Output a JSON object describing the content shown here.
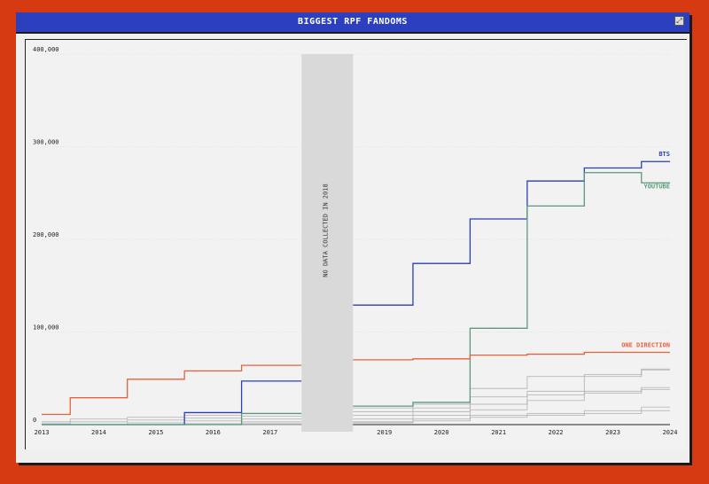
{
  "window": {
    "title": "BIGGEST RPF FANDOMS",
    "resize_icon": "resize-icon"
  },
  "colors": {
    "background": "#d63a12",
    "titlebar": "#2b3fbf",
    "bts": "#2a3fb5",
    "youtube": "#5a9a7a",
    "one_direction": "#e8603c",
    "other": "#a9a9a9",
    "no_data_band": "#d9d9d9"
  },
  "chart_data": {
    "type": "line",
    "step": true,
    "title": "BIGGEST RPF FANDOMS",
    "xlabel": "",
    "ylabel": "",
    "x_ticks": [
      "2013",
      "2014",
      "2015",
      "2016",
      "2017",
      "2019",
      "2020",
      "2021",
      "2022",
      "2023",
      "2024"
    ],
    "y_ticks": [
      "0",
      "100,000",
      "200,000",
      "300,000",
      "400,000"
    ],
    "ylim": [
      0,
      400000
    ],
    "xlim": [
      2013,
      2024
    ],
    "grid": "horizontal-dotted",
    "no_data": {
      "x_start": 2017.55,
      "x_end": 2018.45,
      "label": "NO DATA COLLECTED IN 2018"
    },
    "series": [
      {
        "name": "BTS",
        "color": "#2a3fb5",
        "labeled": true,
        "points": [
          [
            2013,
            0
          ],
          [
            2015.5,
            13000
          ],
          [
            2016.5,
            47000
          ],
          [
            2017.55,
            47000
          ],
          [
            2018.45,
            129000
          ],
          [
            2019.5,
            174000
          ],
          [
            2020.5,
            222000
          ],
          [
            2021.5,
            263000
          ],
          [
            2022.5,
            277000
          ],
          [
            2023.5,
            284000
          ],
          [
            2024,
            284000
          ]
        ]
      },
      {
        "name": "YOUTUBE",
        "color": "#5a9a7a",
        "labeled": true,
        "points": [
          [
            2013,
            0
          ],
          [
            2016.5,
            12000
          ],
          [
            2017.55,
            12000
          ],
          [
            2018.45,
            20000
          ],
          [
            2019.5,
            24000
          ],
          [
            2020.5,
            104000
          ],
          [
            2021.5,
            236000
          ],
          [
            2022.5,
            272000
          ],
          [
            2023.5,
            261000
          ],
          [
            2024,
            261000
          ]
        ]
      },
      {
        "name": "ONE DIRECTION",
        "color": "#e8603c",
        "labeled": true,
        "points": [
          [
            2013,
            11000
          ],
          [
            2013.5,
            29000
          ],
          [
            2014.5,
            49000
          ],
          [
            2015.5,
            58000
          ],
          [
            2016.5,
            64000
          ],
          [
            2017.55,
            64000
          ],
          [
            2018.45,
            70000
          ],
          [
            2019.5,
            71000
          ],
          [
            2020.5,
            75000
          ],
          [
            2021.5,
            76000
          ],
          [
            2022.5,
            78000
          ],
          [
            2024,
            78000
          ]
        ]
      },
      {
        "name": "",
        "color": "#a9a9a9",
        "labeled": false,
        "points": [
          [
            2013,
            3000
          ],
          [
            2013.5,
            6000
          ],
          [
            2014.5,
            8000
          ],
          [
            2015.5,
            10000
          ],
          [
            2016.5,
            12000
          ],
          [
            2017.55,
            12000
          ],
          [
            2018.45,
            18000
          ],
          [
            2019.5,
            22000
          ],
          [
            2020.5,
            39000
          ],
          [
            2021.5,
            52000
          ],
          [
            2022.5,
            54000
          ],
          [
            2023.5,
            59000
          ],
          [
            2024,
            59000
          ]
        ]
      },
      {
        "name": "",
        "color": "#a9a9a9",
        "labeled": false,
        "points": [
          [
            2013,
            1000
          ],
          [
            2013.5,
            3000
          ],
          [
            2014.5,
            5000
          ],
          [
            2015.5,
            7000
          ],
          [
            2016.5,
            9000
          ],
          [
            2017.55,
            9000
          ],
          [
            2018.45,
            14000
          ],
          [
            2019.5,
            18000
          ],
          [
            2020.5,
            30000
          ],
          [
            2021.5,
            36000
          ],
          [
            2022.5,
            52000
          ],
          [
            2023.5,
            60000
          ],
          [
            2024,
            60000
          ]
        ]
      },
      {
        "name": "",
        "color": "#a9a9a9",
        "labeled": false,
        "points": [
          [
            2013,
            0
          ],
          [
            2014.5,
            2000
          ],
          [
            2015.5,
            4000
          ],
          [
            2016.5,
            6000
          ],
          [
            2017.55,
            6000
          ],
          [
            2018.45,
            10000
          ],
          [
            2019.5,
            14000
          ],
          [
            2020.5,
            22000
          ],
          [
            2021.5,
            32000
          ],
          [
            2022.5,
            36000
          ],
          [
            2023.5,
            40000
          ],
          [
            2024,
            40000
          ]
        ]
      },
      {
        "name": "",
        "color": "#a9a9a9",
        "labeled": false,
        "points": [
          [
            2013,
            0
          ],
          [
            2015.5,
            1000
          ],
          [
            2016.5,
            3000
          ],
          [
            2017.55,
            3000
          ],
          [
            2018.45,
            6000
          ],
          [
            2019.5,
            10000
          ],
          [
            2020.5,
            16000
          ],
          [
            2021.5,
            26000
          ],
          [
            2022.5,
            34000
          ],
          [
            2023.5,
            38000
          ],
          [
            2024,
            38000
          ]
        ]
      },
      {
        "name": "",
        "color": "#a9a9a9",
        "labeled": false,
        "points": [
          [
            2013,
            0
          ],
          [
            2016.5,
            1000
          ],
          [
            2017.55,
            1000
          ],
          [
            2018.45,
            3000
          ],
          [
            2019.5,
            6000
          ],
          [
            2020.5,
            10000
          ],
          [
            2021.5,
            12000
          ],
          [
            2022.5,
            15000
          ],
          [
            2023.5,
            19000
          ],
          [
            2024,
            19000
          ]
        ]
      },
      {
        "name": "",
        "color": "#a9a9a9",
        "labeled": false,
        "points": [
          [
            2013,
            0
          ],
          [
            2017.55,
            0
          ],
          [
            2018.45,
            2000
          ],
          [
            2019.5,
            4000
          ],
          [
            2020.5,
            8000
          ],
          [
            2021.5,
            10000
          ],
          [
            2022.5,
            12000
          ],
          [
            2023.5,
            15000
          ],
          [
            2024,
            15000
          ]
        ]
      }
    ]
  }
}
